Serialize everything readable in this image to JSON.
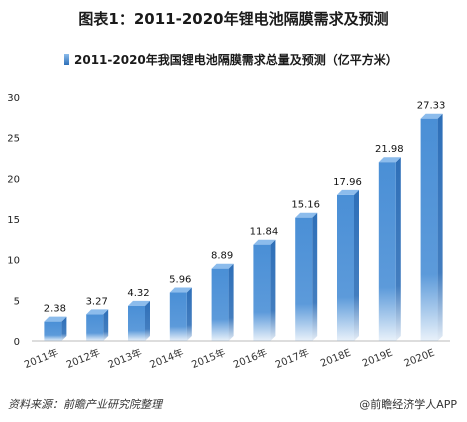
{
  "title": "图表1：2011-2020年锂电池隔膜需求及预测",
  "footer": {
    "source": "资料来源：前瞻产业研究院整理",
    "brand": "@前瞻经济学人APP"
  },
  "colors": {
    "bar_front": "#4a8fd6",
    "bar_side": "#2e6fb8",
    "bar_top": "#8cbcec",
    "axis": "#bbbbbb"
  },
  "chart_data": {
    "type": "bar",
    "title": "图表1：2011-2020年锂电池隔膜需求及预测",
    "legend": "top-center",
    "categories": [
      "2011年",
      "2012年",
      "2013年",
      "2014年",
      "2015年",
      "2016年",
      "2017年",
      "2018E",
      "2019E",
      "2020E"
    ],
    "series": [
      {
        "name": "2011-2020年我国锂电池隔膜需求总量及预测（亿平方米）",
        "values": [
          2.38,
          3.27,
          4.32,
          5.96,
          8.89,
          11.84,
          15.16,
          17.96,
          21.98,
          27.33
        ]
      }
    ],
    "value_labels": [
      "2.38",
      "3.27",
      "4.32",
      "5.96",
      "8.89",
      "11.84",
      "15.16",
      "17.96",
      "21.98",
      "27.33"
    ],
    "ylim": [
      0,
      30
    ],
    "yticks": [
      "0",
      "5",
      "10",
      "15",
      "20",
      "25",
      "30"
    ],
    "grid": false
  }
}
